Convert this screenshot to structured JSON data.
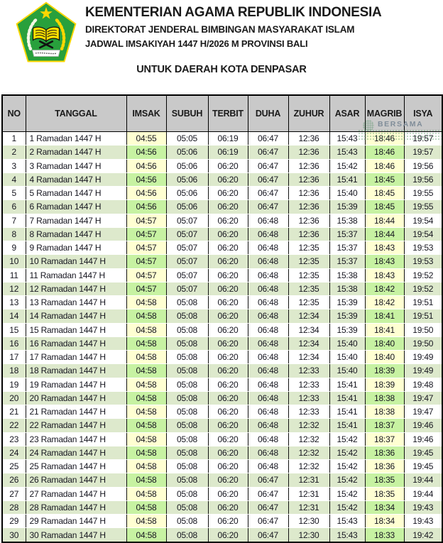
{
  "header": {
    "line1": "KEMENTERIAN AGAMA REPUBLIK INDONESIA",
    "line2": "DIREKTORAT JENDERAL BIMBINGAN MASYARAKAT ISLAM",
    "line3": "JADWAL IMSAKIYAH 1447 H/2026 M PROVINSI BALI",
    "subtitle": "UNTUK DAERAH KOTA DENPASAR"
  },
  "watermark": {
    "text": "BERSAMA"
  },
  "colors": {
    "header_bg": "#c9c9c9",
    "row_green": "#dde9cc",
    "highlight_yellow": "#ffffd2",
    "highlight_green": "#c7f2a2",
    "logo_green": "#28a03c",
    "logo_gold": "#ffd700"
  },
  "table": {
    "columns": [
      "NO",
      "TANGGAL",
      "IMSAK",
      "SUBUH",
      "TERBIT",
      "DUHA",
      "ZUHUR",
      "ASAR",
      "MAGRIB",
      "ISYA"
    ],
    "rows": [
      [
        "1",
        "1 Ramadan 1447 H",
        "04:55",
        "05:05",
        "06:19",
        "06:47",
        "12:36",
        "15:43",
        "18:46",
        "19:57"
      ],
      [
        "2",
        "2 Ramadan 1447 H",
        "04:56",
        "05:06",
        "06:19",
        "06:47",
        "12:36",
        "15:43",
        "18:46",
        "19:57"
      ],
      [
        "3",
        "3 Ramadan 1447 H",
        "04:56",
        "05:06",
        "06:20",
        "06:47",
        "12:36",
        "15:42",
        "18:46",
        "19:56"
      ],
      [
        "4",
        "4 Ramadan 1447 H",
        "04:56",
        "05:06",
        "06:20",
        "06:47",
        "12:36",
        "15:41",
        "18:45",
        "19:56"
      ],
      [
        "5",
        "5 Ramadan 1447 H",
        "04:56",
        "05:06",
        "06:20",
        "06:47",
        "12:36",
        "15:40",
        "18:45",
        "19:55"
      ],
      [
        "6",
        "6 Ramadan 1447 H",
        "04:56",
        "05:06",
        "06:20",
        "06:47",
        "12:36",
        "15:39",
        "18:45",
        "19:55"
      ],
      [
        "7",
        "7 Ramadan 1447 H",
        "04:57",
        "05:07",
        "06:20",
        "06:48",
        "12:36",
        "15:38",
        "18:44",
        "19:54"
      ],
      [
        "8",
        "8 Ramadan 1447 H",
        "04:57",
        "05:07",
        "06:20",
        "06:48",
        "12:36",
        "15:37",
        "18:44",
        "19:54"
      ],
      [
        "9",
        "9 Ramadan 1447 H",
        "04:57",
        "05:07",
        "06:20",
        "06:48",
        "12:35",
        "15:37",
        "18:43",
        "19:53"
      ],
      [
        "10",
        "10 Ramadan 1447 H",
        "04:57",
        "05:07",
        "06:20",
        "06:48",
        "12:35",
        "15:37",
        "18:43",
        "19:53"
      ],
      [
        "11",
        "11 Ramadan 1447 H",
        "04:57",
        "05:07",
        "06:20",
        "06:48",
        "12:35",
        "15:38",
        "18:43",
        "19:52"
      ],
      [
        "12",
        "12 Ramadan 1447 H",
        "04:57",
        "05:07",
        "06:20",
        "06:48",
        "12:35",
        "15:38",
        "18:42",
        "19:52"
      ],
      [
        "13",
        "13 Ramadan 1447 H",
        "04:58",
        "05:08",
        "06:20",
        "06:48",
        "12:35",
        "15:39",
        "18:42",
        "19:51"
      ],
      [
        "14",
        "14 Ramadan 1447 H",
        "04:58",
        "05:08",
        "06:20",
        "06:48",
        "12:34",
        "15:39",
        "18:41",
        "19:51"
      ],
      [
        "15",
        "15 Ramadan 1447 H",
        "04:58",
        "05:08",
        "06:20",
        "06:48",
        "12:34",
        "15:39",
        "18:41",
        "19:50"
      ],
      [
        "16",
        "16 Ramadan 1447 H",
        "04:58",
        "05:08",
        "06:20",
        "06:48",
        "12:34",
        "15:40",
        "18:40",
        "19:50"
      ],
      [
        "17",
        "17 Ramadan 1447 H",
        "04:58",
        "05:08",
        "06:20",
        "06:48",
        "12:34",
        "15:40",
        "18:40",
        "19:49"
      ],
      [
        "18",
        "18 Ramadan 1447 H",
        "04:58",
        "05:08",
        "06:20",
        "06:48",
        "12:33",
        "15:40",
        "18:39",
        "19:49"
      ],
      [
        "19",
        "19 Ramadan 1447 H",
        "04:58",
        "05:08",
        "06:20",
        "06:48",
        "12:33",
        "15:41",
        "18:39",
        "19:48"
      ],
      [
        "20",
        "20 Ramadan 1447 H",
        "04:58",
        "05:08",
        "06:20",
        "06:48",
        "12:33",
        "15:41",
        "18:38",
        "19:47"
      ],
      [
        "21",
        "21 Ramadan 1447 H",
        "04:58",
        "05:08",
        "06:20",
        "06:48",
        "12:33",
        "15:41",
        "18:38",
        "19:47"
      ],
      [
        "22",
        "22 Ramadan 1447 H",
        "04:58",
        "05:08",
        "06:20",
        "06:48",
        "12:32",
        "15:41",
        "18:37",
        "19:46"
      ],
      [
        "23",
        "23 Ramadan 1447 H",
        "04:58",
        "05:08",
        "06:20",
        "06:48",
        "12:32",
        "15:42",
        "18:37",
        "19:46"
      ],
      [
        "24",
        "24 Ramadan 1447 H",
        "04:58",
        "05:08",
        "06:20",
        "06:48",
        "12:32",
        "15:42",
        "18:36",
        "19:45"
      ],
      [
        "25",
        "25 Ramadan 1447 H",
        "04:58",
        "05:08",
        "06:20",
        "06:48",
        "12:32",
        "15:42",
        "18:36",
        "19:45"
      ],
      [
        "26",
        "26 Ramadan 1447 H",
        "04:58",
        "05:08",
        "06:20",
        "06:47",
        "12:31",
        "15:42",
        "18:35",
        "19:44"
      ],
      [
        "27",
        "27 Ramadan 1447 H",
        "04:58",
        "05:08",
        "06:20",
        "06:47",
        "12:31",
        "15:42",
        "18:35",
        "19:44"
      ],
      [
        "28",
        "28 Ramadan 1447 H",
        "04:58",
        "05:08",
        "06:20",
        "06:47",
        "12:31",
        "15:42",
        "18:34",
        "19:43"
      ],
      [
        "29",
        "29 Ramadan 1447 H",
        "04:58",
        "05:08",
        "06:20",
        "06:47",
        "12:30",
        "15:43",
        "18:34",
        "19:43"
      ],
      [
        "30",
        "30 Ramadan 1447 H",
        "04:58",
        "05:08",
        "06:20",
        "06:47",
        "12:30",
        "15:43",
        "18:33",
        "19:42"
      ]
    ]
  }
}
